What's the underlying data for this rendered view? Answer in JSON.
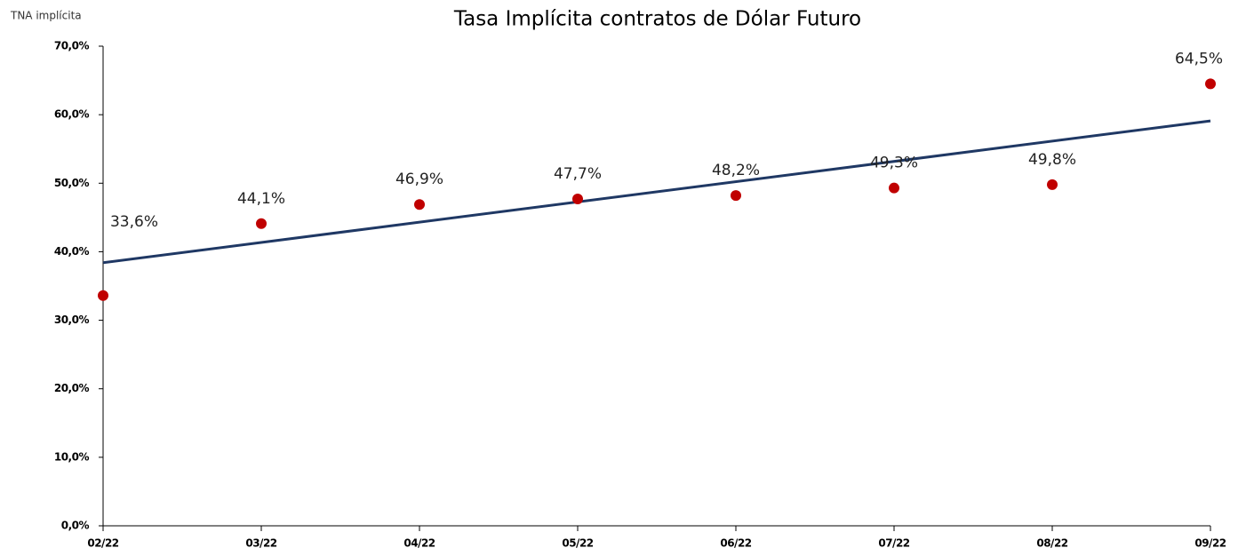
{
  "chart_data": {
    "type": "scatter",
    "title": "Tasa Implícita contratos de Dólar Futuro",
    "y_label": "TNA implícita",
    "categories": [
      "02/22",
      "03/22",
      "04/22",
      "05/22",
      "06/22",
      "07/22",
      "08/22",
      "09/22"
    ],
    "values": [
      33.6,
      44.1,
      46.9,
      47.7,
      48.2,
      49.3,
      49.8,
      64.5
    ],
    "value_labels": [
      "33,6%",
      "44,1%",
      "46,9%",
      "47,7%",
      "48,2%",
      "49,3%",
      "49,8%",
      "64,5%"
    ],
    "color": "#c00000",
    "trendline": {
      "values": [
        38.4,
        59.1
      ],
      "color": "#1f3864"
    },
    "ylim": [
      0,
      70
    ],
    "yticks": [
      {
        "value": 0,
        "label": "0,0%"
      },
      {
        "value": 10,
        "label": "10,0%"
      },
      {
        "value": 20,
        "label": "20,0%"
      },
      {
        "value": 30,
        "label": "30,0%"
      },
      {
        "value": 40,
        "label": "40,0%"
      },
      {
        "value": 50,
        "label": "50,0%"
      },
      {
        "value": 60,
        "label": "60,0%"
      },
      {
        "value": 70,
        "label": "70,0%"
      }
    ],
    "grid": false
  }
}
